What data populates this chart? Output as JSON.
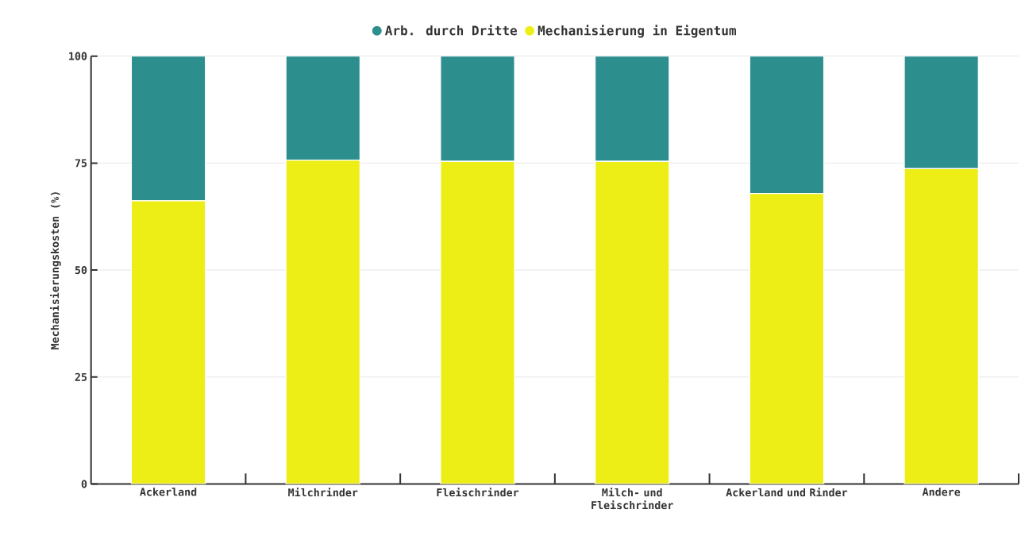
{
  "chart_data": {
    "type": "bar",
    "stacked": true,
    "categories": [
      "Ackerland",
      "Milchrinder",
      "Fleischrinder",
      "Milch- und Fleischrinder",
      "Ackerland und Rinder",
      "Andere"
    ],
    "ylabel": "Mechanisierungskosten (%)",
    "series": [
      {
        "name": "Mechanisierung in Eigentum",
        "color": "#eeee17",
        "values": [
          66.2,
          75.7,
          75.4,
          75.4,
          67.9,
          73.7
        ]
      },
      {
        "name": "Arb. durch Dritte",
        "color": "#2d8e8e",
        "values": [
          33.8,
          24.3,
          24.6,
          24.6,
          32.1,
          26.3
        ]
      }
    ],
    "ylim": [
      0,
      100
    ],
    "yticks": [
      0,
      25,
      50,
      75,
      100
    ],
    "grid": "y",
    "legend": "top"
  }
}
